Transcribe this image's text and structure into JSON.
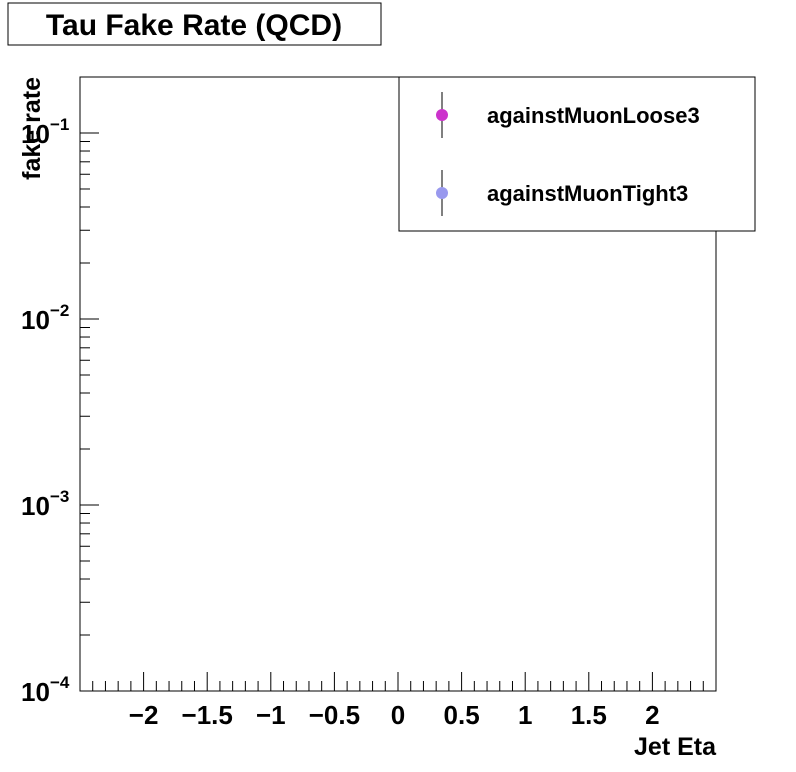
{
  "chart_data": {
    "type": "scatter",
    "title": "Tau Fake Rate (QCD)",
    "xlabel": "Jet Eta",
    "ylabel": "fake rate",
    "xlim": [
      -2.5,
      2.5
    ],
    "ylim": [
      0.0001,
      0.2
    ],
    "y_scale": "log",
    "grid": false,
    "legend_position": "top-right",
    "x_ticks": [
      {
        "value": -2,
        "label": "−2"
      },
      {
        "value": -1.5,
        "label": "−1.5"
      },
      {
        "value": -1,
        "label": "−1"
      },
      {
        "value": -0.5,
        "label": "−0.5"
      },
      {
        "value": 0,
        "label": "0"
      },
      {
        "value": 0.5,
        "label": "0.5"
      },
      {
        "value": 1,
        "label": "1"
      },
      {
        "value": 1.5,
        "label": "1.5"
      },
      {
        "value": 2,
        "label": "2"
      }
    ],
    "y_ticks": [
      {
        "value": 0.0001,
        "base": "10",
        "exp": "−4"
      },
      {
        "value": 0.001,
        "base": "10",
        "exp": "−3"
      },
      {
        "value": 0.01,
        "base": "10",
        "exp": "−2"
      },
      {
        "value": 0.1,
        "base": "10",
        "exp": "−1"
      }
    ],
    "series": [
      {
        "name": "againstMuonLoose3",
        "color": "#cc33cc",
        "points": []
      },
      {
        "name": "againstMuonTight3",
        "color": "#9999ee",
        "points": []
      }
    ]
  }
}
